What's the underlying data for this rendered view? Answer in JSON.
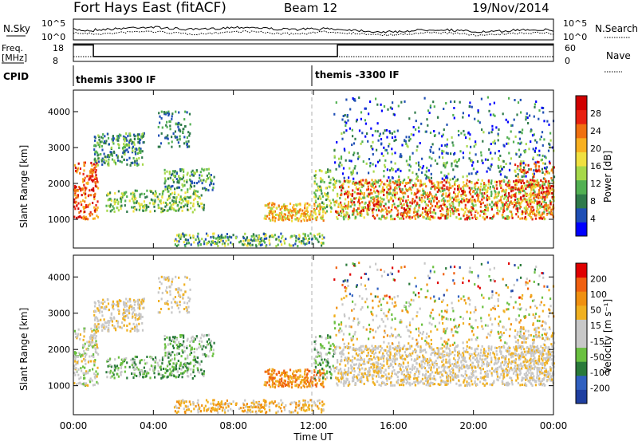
{
  "header": {
    "station": "Fort Hays East (fitACF)",
    "beam": "Beam 12",
    "date": "19/Nov/2014"
  },
  "nsky_panel": {
    "left_label": "N.Sky",
    "left_ticks": [
      "10^5",
      "10^0"
    ],
    "right_label": "N.Search",
    "right_ticks": [
      "10^5",
      "10^0"
    ]
  },
  "freq_panel": {
    "left_label_line1": "Freq.",
    "left_label_line2": "[MHz]",
    "left_ticks": [
      "18",
      "8"
    ],
    "right_label": "Nave",
    "right_ticks": [
      "60",
      "0"
    ],
    "freq_steps": [
      [
        0,
        17.4
      ],
      [
        1.0,
        10.8
      ],
      [
        13.2,
        17.4
      ],
      [
        24,
        17.4
      ]
    ]
  },
  "cpid_panel": {
    "label": "CPID",
    "modes": [
      {
        "start": 0,
        "text": "themis 3300 IF"
      },
      {
        "start": 12.0,
        "text": "themis -3300 IF"
      }
    ]
  },
  "chart_data": [
    {
      "type": "heatmap",
      "panel": "power",
      "ylabel": "Slant Range [km]",
      "yticks": [
        1000,
        2000,
        3000,
        4000
      ],
      "ylim": [
        200,
        4600
      ],
      "colorbar_label": "Power [dB]",
      "colorbar_ticks": [
        "28",
        "24",
        "20",
        "16",
        "12",
        "8",
        "4"
      ],
      "colors": [
        "#0000ff",
        "#1f4fb5",
        "#2f7a4a",
        "#52b052",
        "#a6d84a",
        "#f0e040",
        "#f8b020",
        "#f07010",
        "#e82010",
        "#d00000"
      ]
    },
    {
      "type": "heatmap",
      "panel": "velocity",
      "ylabel": "Slant Range [km]",
      "yticks": [
        1000,
        2000,
        3000,
        4000
      ],
      "ylim": [
        200,
        4600
      ],
      "colorbar_label": "Velocity [m s⁻¹]",
      "colorbar_ticks": [
        "200",
        "100",
        "50",
        "15",
        "-15",
        "-50",
        "-100",
        "-200"
      ],
      "colors": [
        "#1f3fa0",
        "#3060c0",
        "#2a7a3a",
        "#6ac040",
        "#c8c8c8",
        "#c8c8c8",
        "#f0b020",
        "#f09010",
        "#f06010",
        "#e00000"
      ],
      "xlabel": "Time UT",
      "xticks": [
        "00:00",
        "04:00",
        "08:00",
        "12:00",
        "16:00",
        "20:00",
        "00:00"
      ],
      "xlim": [
        0,
        24
      ]
    }
  ]
}
